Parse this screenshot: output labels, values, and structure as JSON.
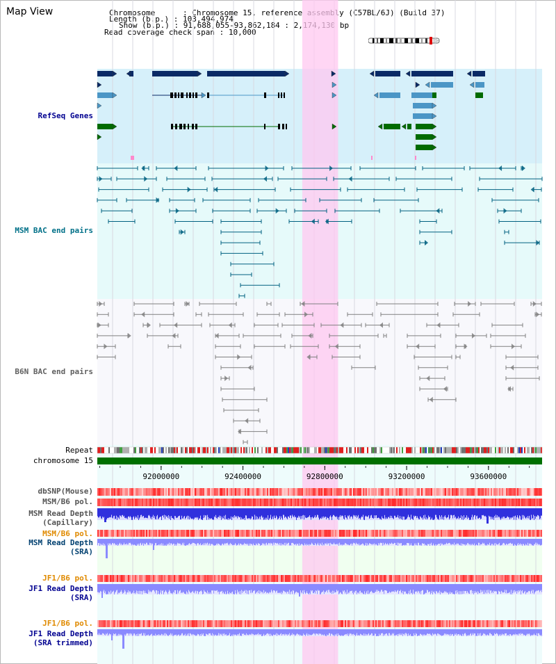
{
  "view": {
    "title": "Map View"
  },
  "info": {
    "chromosome_label": "Chromosome",
    "chromosome_value": "Chromosome 15, reference assembly (C57BL/6J) (Build 37)",
    "length_label": "Length (b.p.)",
    "length_value": "103,494,974",
    "show_label": "Show (b.p.)",
    "show_value": "91,688,055-93,862,184 : 2,174,130 bp",
    "span_label": "Read coverage check span",
    "span_value": "10,000"
  },
  "tracks": {
    "refseq": "RefSeq Genes",
    "msm_bac": "MSM BAC end pairs",
    "b6n_bac": "B6N BAC end pairs",
    "repeat": "Repeat",
    "chromosome": "chromosome 15",
    "dbsnp": "dbSNP(Mouse)",
    "msm_pol": "MSM/B6 pol.",
    "msm_depth_cap_1": "MSM Read Depth",
    "msm_depth_cap_2": "(Capillary)",
    "msm_pol_sra": "MSM/B6 pol.",
    "msm_depth_sra_1": "MSM Read Depth",
    "msm_depth_sra_2": "(SRA)",
    "jf1_pol": "JF1/B6 pol.",
    "jf1_depth_1": "JF1 Read Depth",
    "jf1_depth_2": "(SRA)",
    "jf1_pol_2": "JF1/B6 pol.",
    "jf1_trim_1": "JF1 Read Depth",
    "jf1_trim_2": "(SRA trimmed)"
  },
  "axis": {
    "range_bp": [
      91688055,
      93862184
    ],
    "ticks": [
      "92000000",
      "92400000",
      "92800000",
      "93200000",
      "93600000"
    ],
    "tick_values": [
      92000000,
      92400000,
      92800000,
      93200000,
      93600000
    ]
  },
  "highlight": {
    "start_bp": 92690000,
    "end_bp": 92865000
  },
  "colors": {
    "refseq_bg": "#d6f0fa",
    "msm_bg": "#e6fafa",
    "b6n_bg": "#f8f8fc",
    "gene_dark": "#0a2a66",
    "gene_light": "#4b96c6",
    "gene_green": "#006b00",
    "msm_pair": "#006080",
    "b6n_pair": "#808080",
    "chromosome_bar": "#007000",
    "highlight": "#ffc8f0",
    "depth_blue": "#3030dd",
    "depth_violet": "#8a8aff",
    "label_teal": "#007088",
    "label_navy": "#000090",
    "label_orange": "#e08a00",
    "label_msm_dark": "#004060"
  }
}
